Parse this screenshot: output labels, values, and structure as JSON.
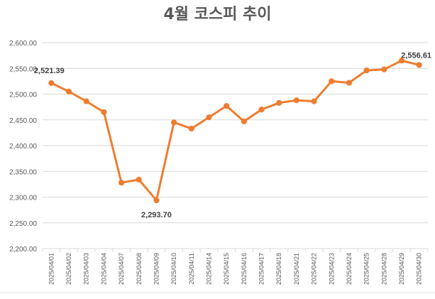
{
  "chart_data": {
    "type": "line",
    "title": "4월 코스피 추이",
    "xlabel": "",
    "ylabel": "",
    "ylim": [
      2200,
      2600
    ],
    "y_ticks": [
      "2,200.00",
      "2,250.00",
      "2,300.00",
      "2,350.00",
      "2,400.00",
      "2,450.00",
      "2,500.00",
      "2,550.00",
      "2,600.00"
    ],
    "y_tick_values": [
      2200,
      2250,
      2300,
      2350,
      2400,
      2450,
      2500,
      2550,
      2600
    ],
    "grid": true,
    "legend": "none",
    "line_color": "#ED7D31",
    "categories": [
      "2025/04/01",
      "2025/04/02",
      "2025/04/03",
      "2025/04/04",
      "2025/04/07",
      "2025/04/08",
      "2025/04/09",
      "2025/04/10",
      "2025/04/11",
      "2025/04/14",
      "2025/04/15",
      "2025/04/16",
      "2025/04/17",
      "2025/04/18",
      "2025/04/21",
      "2025/04/22",
      "2025/04/23",
      "2025/04/24",
      "2025/04/25",
      "2025/04/28",
      "2025/04/29",
      "2025/04/30"
    ],
    "values": [
      2521.39,
      2505,
      2486,
      2465,
      2328,
      2334,
      2293.7,
      2445,
      2433,
      2455,
      2477,
      2447,
      2470,
      2483,
      2488,
      2486,
      2525,
      2522,
      2546,
      2548,
      2565,
      2556.61
    ],
    "data_labels": [
      {
        "index": 0,
        "text": "2,521.39"
      },
      {
        "index": 6,
        "text": "2,293.70"
      },
      {
        "index": 21,
        "text": "2,556.61"
      }
    ]
  }
}
